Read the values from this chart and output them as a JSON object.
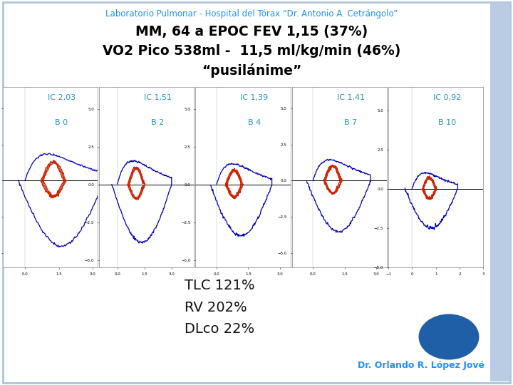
{
  "title_line1": "Laboratorio Pulmonar - Hospital del Tórax “Dr. Antonio A. Cetrángolo”",
  "title2_color": "#000000",
  "title_color": "#1e90ff",
  "background_color": "#ffffff",
  "border_color": "#b0c4de",
  "panels": [
    {
      "label1": "IC 2,03",
      "label2": "B 0"
    },
    {
      "label1": "IC 1,51",
      "label2": "B 2"
    },
    {
      "label1": "IC 1,39",
      "label2": "B 4"
    },
    {
      "label1": "IC 1,41",
      "label2": "B 7"
    },
    {
      "label1": "IC 0,92",
      "label2": "B 10"
    }
  ],
  "panel_label_color": "#2299bb",
  "bottom_text": "TLC 121%\nRV 202%\nDLco 22%",
  "bottom_text_color": "#111111",
  "doctor_text": "Dr. Orlando R. López Jové",
  "doctor_color": "#1e90ff",
  "circle_color": "#1e5fa8",
  "blue_line_color": "#0000bb",
  "red_line_color": "#cc2200"
}
